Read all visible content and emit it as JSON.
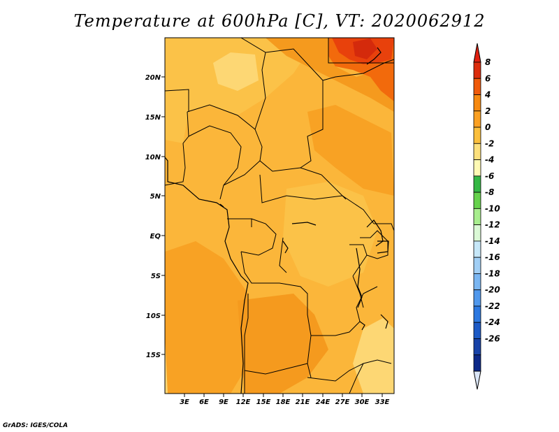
{
  "title": "Temperature at 600hPa [C], VT: 2020062912",
  "credit": "GrADS: IGES/COLA",
  "map": {
    "lon_ticks": [
      "3E",
      "6E",
      "9E",
      "12E",
      "15E",
      "18E",
      "21E",
      "24E",
      "27E",
      "30E",
      "33E"
    ],
    "lat_ticks": [
      "20N",
      "15N",
      "10N",
      "5N",
      "EQ",
      "5S",
      "10S",
      "15S"
    ]
  },
  "colorbar": {
    "labels": [
      "8",
      "6",
      "4",
      "2",
      "0",
      "-2",
      "-4",
      "-6",
      "-8",
      "-10",
      "-12",
      "-14",
      "-16",
      "-18",
      "-20",
      "-22",
      "-24",
      "-26"
    ],
    "colors": [
      "#dc2c0c",
      "#f05a0a",
      "#f7890f",
      "#fba021",
      "#fbbf3c",
      "#fde07c",
      "#fffab4",
      "#34b844",
      "#66d24c",
      "#a8ee8e",
      "#dbf9d6",
      "#c6e7f8",
      "#a1cff5",
      "#7ab6f2",
      "#5098ec",
      "#2c78e0",
      "#1c5ac6",
      "#1742a8",
      "#0c2888"
    ],
    "top_arrow_color": "#e02010",
    "bottom_arrow_color": "#dbe6f7"
  }
}
